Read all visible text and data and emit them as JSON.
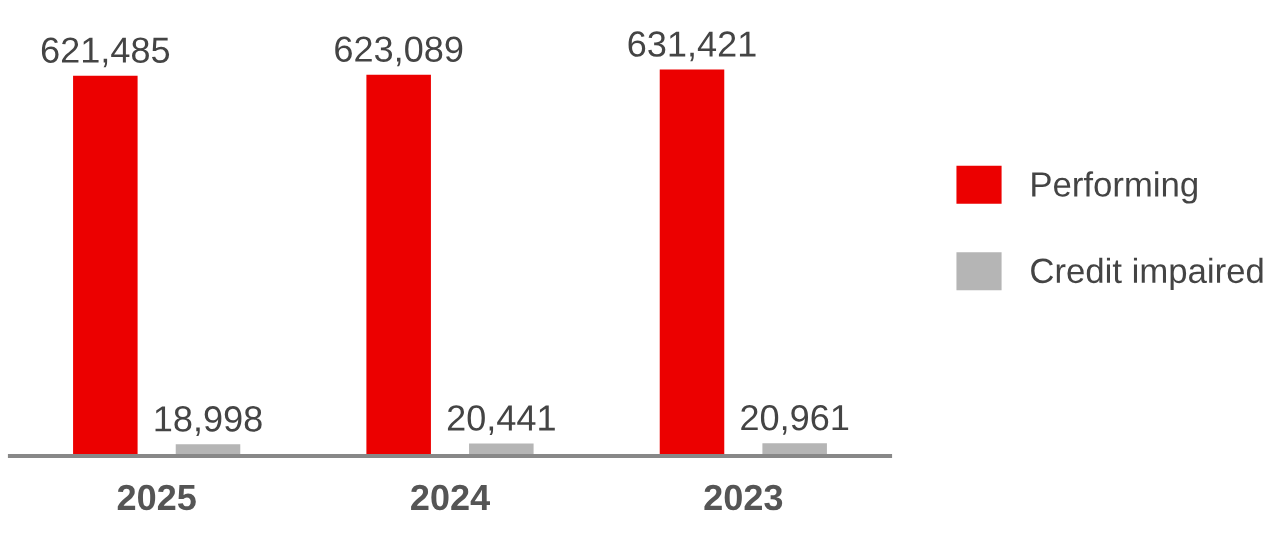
{
  "chart_data": {
    "type": "bar",
    "categories": [
      "2025",
      "2024",
      "2023"
    ],
    "series": [
      {
        "name": "Performing",
        "color": "#ec0000",
        "values": [
          621485,
          623089,
          631421
        ],
        "value_labels": [
          "621,485",
          "623,089",
          "631,421"
        ]
      },
      {
        "name": "Credit impaired",
        "color": "#b5b5b5",
        "values": [
          18998,
          20441,
          20961
        ],
        "value_labels": [
          "18,998",
          "20,441",
          "20,961"
        ]
      }
    ],
    "legend": "right",
    "grid": false
  }
}
